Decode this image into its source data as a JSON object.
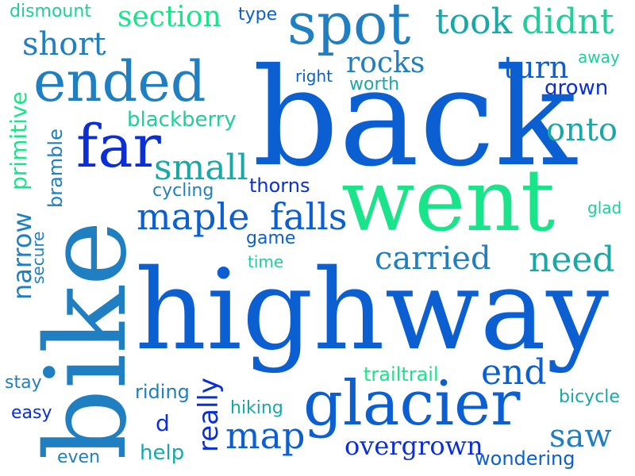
{
  "colors": {
    "deep_blue": "#0a2fd6",
    "royal_blue": "#0b5fd0",
    "ocean_blue": "#1f7fc0",
    "teal": "#18a8a8",
    "mint": "#19e48a",
    "aqua_green": "#1ecf9a",
    "background": "#ffffff"
  },
  "words": [
    {
      "text": "dismount"
    },
    {
      "text": "section"
    },
    {
      "text": "type"
    },
    {
      "text": "spot"
    },
    {
      "text": "took"
    },
    {
      "text": "didnt"
    },
    {
      "text": "short"
    },
    {
      "text": "ended"
    },
    {
      "text": "rocks"
    },
    {
      "text": "turn"
    },
    {
      "text": "away"
    },
    {
      "text": "right"
    },
    {
      "text": "worth"
    },
    {
      "text": "grown"
    },
    {
      "text": "primitive"
    },
    {
      "text": "blackberry"
    },
    {
      "text": "back"
    },
    {
      "text": "onto"
    },
    {
      "text": "far"
    },
    {
      "text": "small"
    },
    {
      "text": "narrow"
    },
    {
      "text": "bramble"
    },
    {
      "text": "cycling"
    },
    {
      "text": "thorns"
    },
    {
      "text": "went"
    },
    {
      "text": "glad"
    },
    {
      "text": "maple"
    },
    {
      "text": "falls"
    },
    {
      "text": "secure"
    },
    {
      "text": "game"
    },
    {
      "text": "time"
    },
    {
      "text": "carried"
    },
    {
      "text": "need"
    },
    {
      "text": "bike"
    },
    {
      "text": "highway"
    },
    {
      "text": "really"
    },
    {
      "text": "trailtrail"
    },
    {
      "text": "end"
    },
    {
      "text": "stay"
    },
    {
      "text": "riding"
    },
    {
      "text": "bicycle"
    },
    {
      "text": "easy"
    },
    {
      "text": "glacier"
    },
    {
      "text": "hiking"
    },
    {
      "text": "d"
    },
    {
      "text": "map"
    },
    {
      "text": "saw"
    },
    {
      "text": "overgrown"
    },
    {
      "text": "even"
    },
    {
      "text": "help"
    },
    {
      "text": "wondering"
    }
  ]
}
